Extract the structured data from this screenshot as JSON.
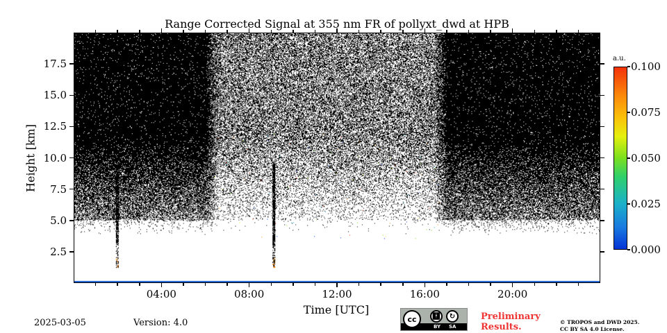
{
  "chart_data": {
    "type": "heatmap",
    "title": "Range Corrected Signal at 355 nm FR of pollyxt_dwd at HPB",
    "xlabel": "Time [UTC]",
    "ylabel": "Height [km]",
    "x_range_hours": [
      0,
      24
    ],
    "y_range_km": [
      0,
      20
    ],
    "x_ticks": [
      "04:00",
      "08:00",
      "12:00",
      "16:00",
      "20:00"
    ],
    "x_tick_hours": [
      4,
      8,
      12,
      16,
      20
    ],
    "x_minor_tick_step_hours": 1,
    "y_ticks": [
      "2.5",
      "5.0",
      "7.5",
      "10.0",
      "12.5",
      "15.0",
      "17.5"
    ],
    "y_tick_values": [
      2.5,
      5.0,
      7.5,
      10.0,
      12.5,
      15.0,
      17.5
    ],
    "colorbar": {
      "unit": "a.u.",
      "range": [
        0.0,
        0.1
      ],
      "ticks": [
        "0.000",
        "0.025",
        "0.050",
        "0.075",
        "0.100"
      ],
      "tick_values": [
        0.0,
        0.025,
        0.05,
        0.075,
        0.1
      ],
      "colormap": "jet-like (blue → cyan → green → yellow → orange → red)"
    },
    "features": {
      "night_high_noise_periods_utc": [
        [
          0,
          6
        ],
        [
          17,
          24
        ]
      ],
      "daytime_speckle_period_utc": [
        6,
        17
      ],
      "noise_onset_height_km": 5.0,
      "near_ground_layer_km": [
        0,
        0.15
      ],
      "precip_streaks_utc": [
        1.95,
        9.1
      ],
      "streak_top_km": 9.5
    }
  },
  "footer": {
    "date": "2025-03-05",
    "version": "Version: 4.0",
    "license_badge": {
      "left": "cc",
      "by": "BY",
      "sa": "SA"
    },
    "preliminary_line1": "Preliminary",
    "preliminary_line2": "Results.",
    "copyright_line1": "© TROPOS and DWD 2025.",
    "copyright_line2": "CC BY SA 4.0 License."
  },
  "colors": {
    "preliminary": "#ef3434",
    "ground_layer": "#0b55c9",
    "noise": "#000000",
    "background": "#ffffff"
  }
}
